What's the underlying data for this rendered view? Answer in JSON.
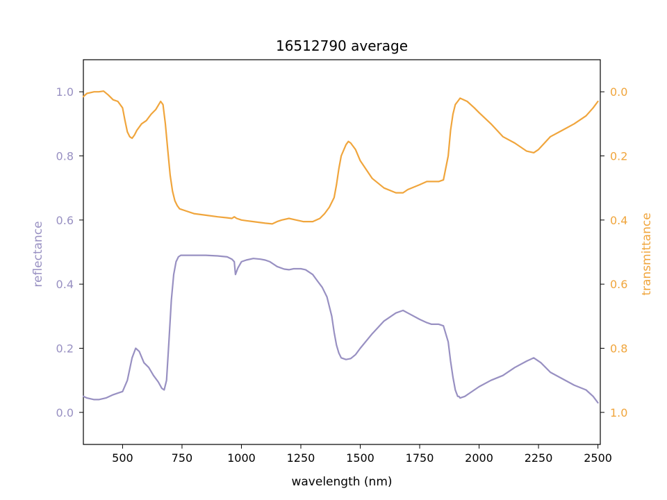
{
  "chart_data": {
    "type": "line",
    "title": "16512790 average",
    "xlabel": "wavelength (nm)",
    "ylabel_left": "reflectance",
    "ylabel_right": "transmittance",
    "xlim": [
      335,
      2510
    ],
    "ylim_left": [
      -0.1,
      1.1
    ],
    "ylim_right": [
      1.1,
      -0.1
    ],
    "right_axis_inverted": true,
    "grid": false,
    "x_ticks": [
      500,
      750,
      1000,
      1250,
      1500,
      1750,
      2000,
      2250,
      2500
    ],
    "x_tick_labels": [
      "500",
      "750",
      "1000",
      "1250",
      "1500",
      "1750",
      "2000",
      "2250",
      "2500"
    ],
    "y_ticks_left": [
      0.0,
      0.2,
      0.4,
      0.6,
      0.8,
      1.0
    ],
    "y_tick_labels_left": [
      "0.0",
      "0.2",
      "0.4",
      "0.6",
      "0.8",
      "1.0"
    ],
    "y_ticks_right": [
      0.0,
      0.2,
      0.4,
      0.6,
      0.8,
      1.0
    ],
    "y_tick_labels_right": [
      "0.0",
      "0.2",
      "0.4",
      "0.6",
      "0.8",
      "1.0"
    ],
    "colors": {
      "reflectance": "#9890c2",
      "transmittance": "#f0a53c"
    },
    "series": [
      {
        "axis": "left",
        "color": "#9890c2",
        "x": [
          335,
          350,
          380,
          400,
          430,
          460,
          480,
          500,
          520,
          540,
          555,
          570,
          590,
          610,
          630,
          650,
          665,
          675,
          685,
          695,
          705,
          715,
          725,
          735,
          745,
          760,
          800,
          850,
          900,
          940,
          960,
          970,
          975,
          985,
          1000,
          1020,
          1050,
          1080,
          1100,
          1120,
          1150,
          1180,
          1200,
          1220,
          1250,
          1270,
          1300,
          1320,
          1340,
          1360,
          1380,
          1390,
          1400,
          1410,
          1420,
          1440,
          1460,
          1480,
          1500,
          1550,
          1600,
          1650,
          1680,
          1700,
          1750,
          1780,
          1800,
          1830,
          1850,
          1870,
          1880,
          1890,
          1900,
          1905,
          1910,
          1915,
          1920,
          1940,
          1960,
          2000,
          2050,
          2100,
          2150,
          2200,
          2230,
          2260,
          2300,
          2350,
          2400,
          2450,
          2480,
          2500
        ],
        "y": [
          0.05,
          0.045,
          0.04,
          0.04,
          0.045,
          0.055,
          0.06,
          0.065,
          0.1,
          0.17,
          0.2,
          0.19,
          0.155,
          0.14,
          0.115,
          0.095,
          0.075,
          0.07,
          0.1,
          0.22,
          0.35,
          0.43,
          0.47,
          0.485,
          0.49,
          0.49,
          0.49,
          0.49,
          0.488,
          0.485,
          0.478,
          0.47,
          0.43,
          0.45,
          0.47,
          0.475,
          0.48,
          0.478,
          0.475,
          0.47,
          0.455,
          0.447,
          0.445,
          0.448,
          0.448,
          0.445,
          0.43,
          0.41,
          0.39,
          0.36,
          0.3,
          0.25,
          0.21,
          0.185,
          0.17,
          0.165,
          0.168,
          0.18,
          0.2,
          0.245,
          0.285,
          0.31,
          0.318,
          0.31,
          0.29,
          0.28,
          0.275,
          0.275,
          0.27,
          0.22,
          0.16,
          0.11,
          0.07,
          0.06,
          0.05,
          0.05,
          0.045,
          0.05,
          0.06,
          0.08,
          0.1,
          0.115,
          0.14,
          0.16,
          0.17,
          0.155,
          0.125,
          0.105,
          0.085,
          0.07,
          0.05,
          0.03
        ]
      },
      {
        "axis": "right",
        "color": "#f0a53c",
        "x": [
          335,
          350,
          380,
          400,
          420,
          440,
          460,
          480,
          500,
          510,
          520,
          530,
          540,
          550,
          560,
          580,
          600,
          620,
          640,
          660,
          670,
          680,
          690,
          700,
          710,
          720,
          730,
          740,
          760,
          800,
          850,
          900,
          940,
          960,
          970,
          980,
          1000,
          1020,
          1050,
          1100,
          1130,
          1150,
          1170,
          1200,
          1230,
          1260,
          1300,
          1330,
          1350,
          1370,
          1390,
          1400,
          1410,
          1420,
          1440,
          1450,
          1460,
          1480,
          1500,
          1550,
          1600,
          1650,
          1680,
          1700,
          1750,
          1780,
          1800,
          1830,
          1850,
          1870,
          1880,
          1890,
          1900,
          1910,
          1920,
          1950,
          1980,
          2000,
          2050,
          2100,
          2150,
          2200,
          2230,
          2250,
          2300,
          2350,
          2400,
          2450,
          2480,
          2500
        ],
        "y": [
          0.015,
          0.005,
          0.0,
          0.0,
          -0.002,
          0.01,
          0.025,
          0.03,
          0.05,
          0.09,
          0.125,
          0.14,
          0.145,
          0.135,
          0.12,
          0.1,
          0.09,
          0.07,
          0.055,
          0.03,
          0.04,
          0.1,
          0.18,
          0.26,
          0.31,
          0.34,
          0.355,
          0.365,
          0.37,
          0.38,
          0.385,
          0.39,
          0.393,
          0.395,
          0.39,
          0.395,
          0.4,
          0.402,
          0.405,
          0.41,
          0.412,
          0.405,
          0.4,
          0.395,
          0.4,
          0.405,
          0.405,
          0.395,
          0.38,
          0.36,
          0.33,
          0.29,
          0.24,
          0.2,
          0.165,
          0.155,
          0.16,
          0.18,
          0.215,
          0.27,
          0.3,
          0.315,
          0.315,
          0.305,
          0.29,
          0.28,
          0.28,
          0.28,
          0.275,
          0.2,
          0.12,
          0.07,
          0.04,
          0.03,
          0.02,
          0.03,
          0.05,
          0.065,
          0.1,
          0.14,
          0.16,
          0.185,
          0.19,
          0.18,
          0.14,
          0.12,
          0.1,
          0.075,
          0.05,
          0.03
        ]
      }
    ]
  }
}
